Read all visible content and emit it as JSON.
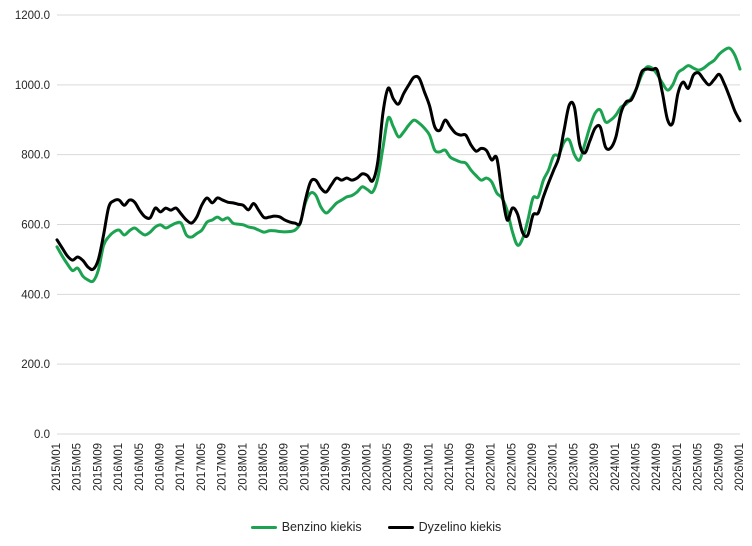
{
  "chart_data": {
    "type": "line",
    "title": "",
    "xlabel": "",
    "ylabel": "",
    "x_start": "2015M01",
    "x_interval_months": 1,
    "x_tick_step_months": 4,
    "x_tick_labels": [
      "2015M01",
      "2015M05",
      "2015M09",
      "2016M01",
      "2016M05",
      "2016M09",
      "2017M01",
      "2017M05",
      "2017M09",
      "2018M01",
      "2018M05",
      "2018M09",
      "2019M01",
      "2019M05",
      "2019M09",
      "2020M01",
      "2020M05",
      "2020M09",
      "2021M01",
      "2021M05",
      "2021M09",
      "2022M01",
      "2022M05",
      "2022M09",
      "2023M01",
      "2023M05",
      "2023M09",
      "2024M01",
      "2024M05",
      "2024M09",
      "2025M01",
      "2025M05",
      "2025M09",
      "2026M01"
    ],
    "y_tick_labels": [
      "0.0",
      "200.0",
      "400.0",
      "600.0",
      "800.0",
      "1000.0",
      "1200.0"
    ],
    "ylim": [
      0,
      1200
    ],
    "grid": "horizontal-only",
    "gridline_color": "#D9D9D9",
    "legend_position": "bottom-center",
    "series": [
      {
        "name": "Benzino kiekis",
        "color": "#1CA351",
        "values": [
          536,
          510,
          487,
          468,
          475,
          452,
          441,
          438,
          470,
          540,
          565,
          579,
          584,
          570,
          582,
          590,
          579,
          570,
          578,
          593,
          599,
          590,
          597,
          604,
          604,
          570,
          564,
          574,
          584,
          607,
          613,
          621,
          613,
          619,
          604,
          601,
          599,
          593,
          590,
          584,
          578,
          582,
          582,
          580,
          579,
          580,
          584,
          604,
          662,
          690,
          684,
          650,
          633,
          645,
          661,
          670,
          679,
          683,
          693,
          708,
          700,
          693,
          733,
          820,
          905,
          880,
          851,
          865,
          885,
          899,
          890,
          876,
          856,
          813,
          808,
          813,
          793,
          785,
          779,
          776,
          756,
          740,
          727,
          733,
          722,
          690,
          676,
          640,
          580,
          541,
          560,
          613,
          676,
          679,
          727,
          756,
          797,
          800,
          836,
          842,
          800,
          785,
          830,
          880,
          919,
          928,
          894,
          899,
          913,
          936,
          945,
          962,
          990,
          1028,
          1051,
          1048,
          1030,
          1005,
          985,
          1000,
          1034,
          1045,
          1055,
          1048,
          1042,
          1048,
          1060,
          1070,
          1088,
          1100,
          1105,
          1085,
          1045
        ]
      },
      {
        "name": "Dyzelino kiekis",
        "color": "#000000",
        "values": [
          556,
          533,
          510,
          498,
          507,
          497,
          478,
          472,
          500,
          570,
          650,
          668,
          670,
          655,
          670,
          664,
          640,
          622,
          619,
          647,
          636,
          647,
          641,
          647,
          630,
          613,
          604,
          621,
          656,
          676,
          662,
          676,
          670,
          664,
          662,
          658,
          655,
          642,
          660,
          640,
          620,
          621,
          624,
          622,
          613,
          607,
          604,
          604,
          670,
          722,
          727,
          704,
          693,
          713,
          733,
          727,
          733,
          727,
          733,
          745,
          740,
          725,
          780,
          920,
          990,
          960,
          945,
          975,
          1000,
          1022,
          1019,
          980,
          940,
          880,
          870,
          899,
          880,
          862,
          856,
          856,
          828,
          810,
          818,
          812,
          785,
          790,
          690,
          613,
          647,
          630,
          576,
          570,
          627,
          633,
          679,
          719,
          756,
          793,
          870,
          942,
          936,
          830,
          805,
          840,
          876,
          879,
          822,
          819,
          850,
          920,
          951,
          957,
          990,
          1037,
          1045,
          1043,
          1042,
          977,
          900,
          891,
          975,
          1008,
          990,
          1028,
          1034,
          1015,
          1000,
          1015,
          1030,
          1002,
          965,
          925,
          897
        ]
      }
    ]
  }
}
